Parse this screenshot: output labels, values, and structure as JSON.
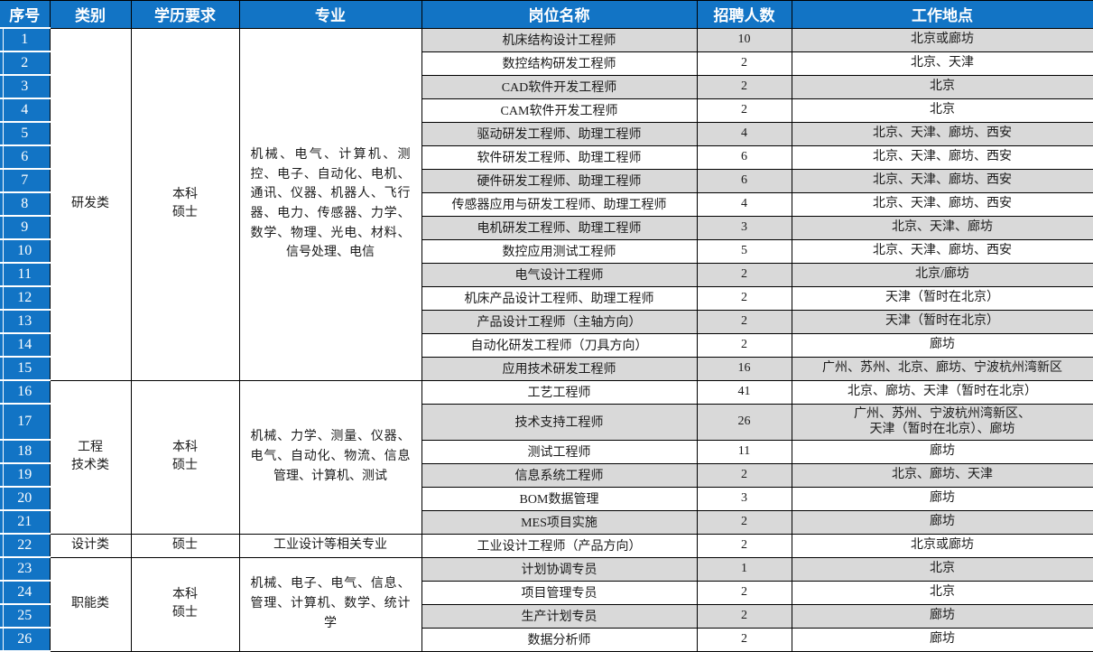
{
  "colors": {
    "header_blue": "#1274c5",
    "stripe_gray": "#d9d9d9",
    "border_black": "#000000",
    "header_text_white": "#ffffff",
    "cell_text": "#1a1a1a"
  },
  "header": {
    "columns": [
      "序号",
      "类别",
      "学历要求",
      "专业",
      "岗位名称",
      "招聘人数",
      "工作地点"
    ]
  },
  "groups": [
    {
      "category": "研发类",
      "education": "本科\n硕士",
      "majors": "机械、电气、计算机、测控、电子、自动化、电机、通讯、仪器、机器人、飞行器、电力、传感器、力学、数学、物理、光电、材料、信号处理、电信",
      "rows": [
        {
          "no": 1,
          "position": "机床结构设计工程师",
          "count": "10",
          "location": "北京或廊坊"
        },
        {
          "no": 2,
          "position": "数控结构研发工程师",
          "count": "2",
          "location": "北京、天津"
        },
        {
          "no": 3,
          "position": "CAD软件开发工程师",
          "count": "2",
          "location": "北京"
        },
        {
          "no": 4,
          "position": "CAM软件开发工程师",
          "count": "2",
          "location": "北京"
        },
        {
          "no": 5,
          "position": "驱动研发工程师、助理工程师",
          "count": "4",
          "location": "北京、天津、廊坊、西安"
        },
        {
          "no": 6,
          "position": "软件研发工程师、助理工程师",
          "count": "6",
          "location": "北京、天津、廊坊、西安"
        },
        {
          "no": 7,
          "position": "硬件研发工程师、助理工程师",
          "count": "6",
          "location": "北京、天津、廊坊、西安"
        },
        {
          "no": 8,
          "position": "传感器应用与研发工程师、助理工程师",
          "count": "4",
          "location": "北京、天津、廊坊、西安"
        },
        {
          "no": 9,
          "position": "电机研发工程师、助理工程师",
          "count": "3",
          "location": "北京、天津、廊坊"
        },
        {
          "no": 10,
          "position": "数控应用测试工程师",
          "count": "5",
          "location": "北京、天津、廊坊、西安"
        },
        {
          "no": 11,
          "position": "电气设计工程师",
          "count": "2",
          "location": "北京/廊坊"
        },
        {
          "no": 12,
          "position": "机床产品设计工程师、助理工程师",
          "count": "2",
          "location": "天津（暂时在北京）"
        },
        {
          "no": 13,
          "position": "产品设计工程师（主轴方向）",
          "count": "2",
          "location": "天津（暂时在北京）"
        },
        {
          "no": 14,
          "position": "自动化研发工程师（刀具方向）",
          "count": "2",
          "location": "廊坊"
        },
        {
          "no": 15,
          "position": "应用技术研发工程师",
          "count": "16",
          "location": "广州、苏州、北京、廊坊、宁波杭州湾新区"
        }
      ]
    },
    {
      "category": "工程\n技术类",
      "education": "本科\n硕士",
      "majors": "机械、力学、测量、仪器、电气、自动化、物流、信息管理、计算机、测试",
      "rows": [
        {
          "no": 16,
          "position": "工艺工程师",
          "count": "41",
          "location": "北京、廊坊、天津（暂时在北京）"
        },
        {
          "no": 17,
          "position": "技术支持工程师",
          "count": "26",
          "location": "广州、苏州、宁波杭州湾新区、\n天津（暂时在北京）、廊坊"
        },
        {
          "no": 18,
          "position": "测试工程师",
          "count": "11",
          "location": "廊坊"
        },
        {
          "no": 19,
          "position": "信息系统工程师",
          "count": "2",
          "location": "北京、廊坊、天津"
        },
        {
          "no": 20,
          "position": "BOM数据管理",
          "count": "3",
          "location": "廊坊"
        },
        {
          "no": 21,
          "position": "MES项目实施",
          "count": "2",
          "location": "廊坊"
        }
      ]
    },
    {
      "category": "设计类",
      "education": "硕士",
      "majors": "工业设计等相关专业",
      "rows": [
        {
          "no": 22,
          "position": "工业设计工程师（产品方向）",
          "count": "2",
          "location": "北京或廊坊"
        }
      ]
    },
    {
      "category": "职能类",
      "education": "本科\n硕士",
      "majors": "机械、电子、电气、信息、管理、计算机、数学、统计学",
      "rows": [
        {
          "no": 23,
          "position": "计划协调专员",
          "count": "1",
          "location": "北京"
        },
        {
          "no": 24,
          "position": "项目管理专员",
          "count": "2",
          "location": "北京"
        },
        {
          "no": 25,
          "position": "生产计划专员",
          "count": "2",
          "location": "廊坊"
        },
        {
          "no": 26,
          "position": "数据分析师",
          "count": "2",
          "location": "廊坊"
        }
      ]
    }
  ]
}
